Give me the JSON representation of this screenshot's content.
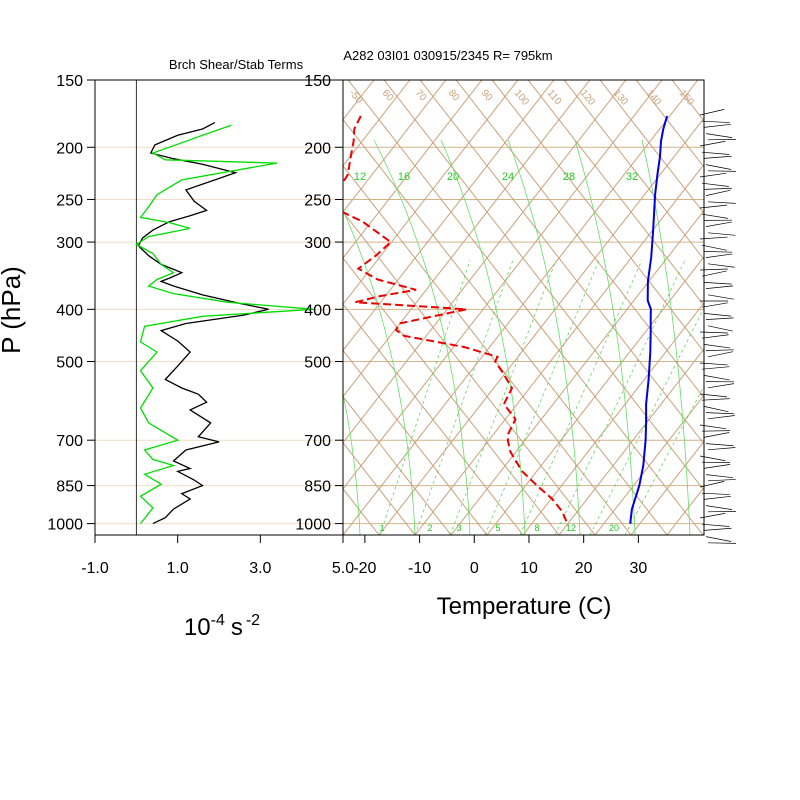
{
  "chart_data": [
    {
      "type": "line",
      "title": "Brch Shear/Stab Terms",
      "xlabel_base": "10",
      "xlabel_exp1": "-4",
      "xlabel_unit": "s",
      "xlabel_exp2": "-2",
      "ylabel": "P (hPa)",
      "xlim": [
        -1.0,
        5.0
      ],
      "ylim": [
        1050,
        150
      ],
      "x_ticks": [
        -1.0,
        1.0,
        3.0,
        5.0
      ],
      "x_tick_labels": [
        "-1.0",
        "1.0",
        "3.0",
        "5.0"
      ],
      "p_ticks": [
        150,
        200,
        250,
        300,
        400,
        500,
        700,
        850,
        1000
      ],
      "p_tick_labels": [
        "150",
        "200",
        "250",
        "300",
        "400",
        "500",
        "700",
        "850",
        "1000"
      ],
      "series": [
        {
          "color": "#000000",
          "points": [
            [
              1.9,
              180
            ],
            [
              1.6,
              185
            ],
            [
              1.0,
              190
            ],
            [
              0.45,
              198
            ],
            [
              0.35,
              205
            ],
            [
              0.9,
              210
            ],
            [
              1.6,
              215
            ],
            [
              2.4,
              223
            ],
            [
              1.9,
              230
            ],
            [
              1.2,
              240
            ],
            [
              1.4,
              252
            ],
            [
              1.7,
              262
            ],
            [
              1.3,
              268
            ],
            [
              0.8,
              275
            ],
            [
              0.4,
              285
            ],
            [
              0.15,
              295
            ],
            [
              0.05,
              305
            ],
            [
              0.3,
              318
            ],
            [
              0.6,
              330
            ],
            [
              1.1,
              342
            ],
            [
              0.8,
              350
            ],
            [
              0.6,
              355
            ],
            [
              0.9,
              362
            ],
            [
              1.6,
              376
            ],
            [
              2.5,
              390
            ],
            [
              3.2,
              400
            ],
            [
              2.6,
              410
            ],
            [
              1.2,
              425
            ],
            [
              0.6,
              438
            ],
            [
              1.0,
              458
            ],
            [
              1.3,
              480
            ],
            [
              1.0,
              510
            ],
            [
              0.7,
              540
            ],
            [
              1.1,
              560
            ],
            [
              1.5,
              575
            ],
            [
              1.7,
              595
            ],
            [
              1.3,
              615
            ],
            [
              1.8,
              650
            ],
            [
              1.5,
              690
            ],
            [
              2.0,
              705
            ],
            [
              1.2,
              730
            ],
            [
              0.9,
              765
            ],
            [
              1.3,
              790
            ],
            [
              1.0,
              800
            ],
            [
              1.4,
              830
            ],
            [
              1.6,
              850
            ],
            [
              1.1,
              880
            ],
            [
              1.3,
              900
            ],
            [
              0.9,
              940
            ],
            [
              0.7,
              975
            ],
            [
              0.4,
              1000
            ]
          ]
        },
        {
          "color": "#00dd00",
          "points": [
            [
              2.3,
              182
            ],
            [
              1.6,
              190
            ],
            [
              1.2,
              195
            ],
            [
              0.4,
              205
            ],
            [
              0.7,
              211
            ],
            [
              3.4,
              214
            ],
            [
              1.1,
              230
            ],
            [
              0.5,
              245
            ],
            [
              0.3,
              258
            ],
            [
              0.1,
              270
            ],
            [
              0.8,
              276
            ],
            [
              1.3,
              283
            ],
            [
              0.3,
              293
            ],
            [
              0.0,
              303
            ],
            [
              0.4,
              315
            ],
            [
              0.6,
              330
            ],
            [
              0.9,
              342
            ],
            [
              0.5,
              352
            ],
            [
              0.3,
              362
            ],
            [
              0.9,
              374
            ],
            [
              2.2,
              388
            ],
            [
              4.3,
              400
            ],
            [
              1.6,
              412
            ],
            [
              0.2,
              430
            ],
            [
              0.1,
              460
            ],
            [
              0.5,
              480
            ],
            [
              0.1,
              520
            ],
            [
              0.4,
              560
            ],
            [
              0.1,
              610
            ],
            [
              0.3,
              650
            ],
            [
              1.0,
              700
            ],
            [
              0.2,
              730
            ],
            [
              0.4,
              760
            ],
            [
              0.9,
              780
            ],
            [
              0.2,
              810
            ],
            [
              0.6,
              845
            ],
            [
              0.1,
              890
            ],
            [
              0.4,
              935
            ],
            [
              0.1,
              1000
            ]
          ]
        }
      ]
    },
    {
      "type": "line",
      "title": "A282 03I01 030915/2345 R= 795km",
      "xlabel": "Temperature (C)",
      "xlim": [
        -24,
        42
      ],
      "ylim": [
        1050,
        150
      ],
      "x_ticks": [
        -20,
        -10,
        0,
        10,
        20,
        30
      ],
      "x_tick_labels": [
        "-20",
        "-10",
        "0",
        "10",
        "20",
        "30"
      ],
      "p_ticks": [
        150,
        200,
        250,
        300,
        400,
        500,
        700,
        850,
        1000
      ],
      "p_tick_labels": [
        "150",
        "200",
        "250",
        "300",
        "400",
        "500",
        "700",
        "850",
        "1000"
      ],
      "skew_labels": [
        "-50",
        "60",
        "70",
        "80",
        "90",
        "100",
        "110",
        "120",
        "130",
        "140",
        "150"
      ],
      "moist_adiabat_labels": [
        "12",
        "16",
        "20",
        "24",
        "28",
        "32"
      ],
      "mixing_ratio_labels": [
        "1",
        "2",
        "3",
        "5",
        "8",
        "12",
        "20"
      ],
      "series": [
        {
          "name": "temperature",
          "color": "#0000dd",
          "style": "solid",
          "points": [
            [
              -2.0,
              175
            ],
            [
              -1.5,
              185
            ],
            [
              -0.8,
              195
            ],
            [
              0.4,
              208
            ],
            [
              1.6,
              225
            ],
            [
              3.0,
              245
            ],
            [
              4.5,
              265
            ],
            [
              6.2,
              290
            ],
            [
              8.0,
              320
            ],
            [
              9.6,
              355
            ],
            [
              11.3,
              385
            ],
            [
              12.7,
              400
            ],
            [
              13.2,
              410
            ],
            [
              14.7,
              440
            ],
            [
              16.5,
              480
            ],
            [
              18.7,
              540
            ],
            [
              20.5,
              600
            ],
            [
              22.2,
              650
            ],
            [
              23.7,
              700
            ],
            [
              25.6,
              780
            ],
            [
              26.7,
              850
            ],
            [
              27.5,
              940
            ],
            [
              28.5,
              1000
            ]
          ]
        },
        {
          "name": "dewpoint",
          "color": "#ee0000",
          "style": "dashed",
          "points": [
            [
              -58.0,
              175
            ],
            [
              -58.0,
              185
            ],
            [
              -57.0,
              195
            ],
            [
              -56.0,
              210
            ],
            [
              -55.0,
              225
            ],
            [
              -55.5,
              245
            ],
            [
              -55.0,
              258
            ],
            [
              -48.0,
              275
            ],
            [
              -41.0,
              300
            ],
            [
              -42.5,
              318
            ],
            [
              -44.5,
              336
            ],
            [
              -40.0,
              352
            ],
            [
              -32.0,
              368
            ],
            [
              -38.0,
              378
            ],
            [
              -42.0,
              388
            ],
            [
              -21.0,
              400
            ],
            [
              -32.0,
              425
            ],
            [
              -32.0,
              437
            ],
            [
              -30.0,
              448
            ],
            [
              -18.0,
              470
            ],
            [
              -11.0,
              490
            ],
            [
              -11.0,
              500
            ],
            [
              -9.0,
              520
            ],
            [
              -5.5,
              560
            ],
            [
              -5.5,
              600
            ],
            [
              -2.0,
              640
            ],
            [
              -2.0,
              680
            ],
            [
              -1.5,
              700
            ],
            [
              0.0,
              735
            ],
            [
              4.0,
              800
            ],
            [
              8.0,
              850
            ],
            [
              12.0,
              900
            ],
            [
              15.0,
              950
            ],
            [
              17.0,
              1000
            ]
          ]
        }
      ],
      "wind_barbs": "right"
    }
  ]
}
